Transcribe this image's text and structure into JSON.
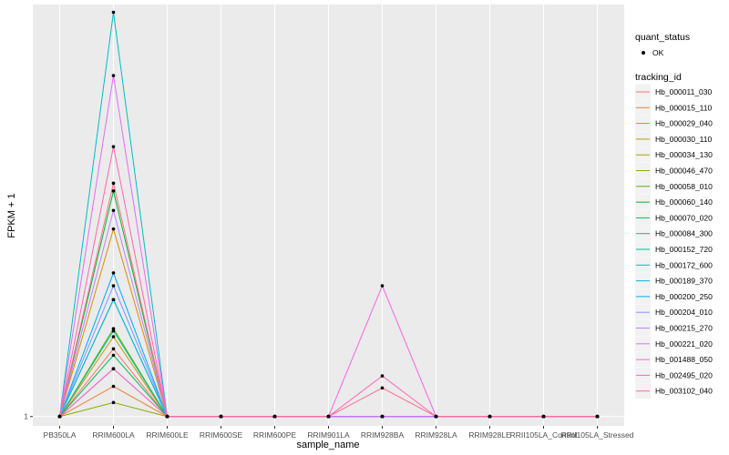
{
  "chart_data": {
    "type": "line",
    "xlabel": "sample_name",
    "ylabel": "FPKM + 1",
    "y_tick_labels": [
      "1"
    ],
    "categories": [
      "PB350LA",
      "RRIM600LA",
      "RRIM600LE",
      "RRIM600SE",
      "RRIM600PE",
      "RRIM901LA",
      "RRIM928BA",
      "RRIM928LA",
      "RRIM928LE",
      "RRII105LA_Control",
      "RRII105LA_Stressed"
    ],
    "ylim": [
      0.95,
      9.6
    ],
    "scale": "log",
    "grid": true,
    "legend_placement": "right",
    "point_legend": {
      "title": "quant_status",
      "entries": [
        "OK"
      ]
    },
    "series_legend_title": "tracking_id",
    "series": [
      {
        "name": "Hb_000011_030",
        "color": "#F8766D",
        "values": [
          1,
          1.45,
          1,
          1,
          1,
          1,
          1,
          1,
          1,
          1,
          1
        ]
      },
      {
        "name": "Hb_000015_110",
        "color": "#EB8335",
        "values": [
          1,
          1.18,
          1,
          1,
          1,
          1,
          1,
          1,
          1,
          1,
          1
        ]
      },
      {
        "name": "Hb_000029_040",
        "color": "#DA8F00",
        "values": [
          1,
          2.8,
          1,
          1,
          1,
          1,
          1,
          1,
          1,
          1,
          1
        ]
      },
      {
        "name": "Hb_000030_110",
        "color": "#C49A00",
        "values": [
          1,
          1.55,
          1,
          1,
          1,
          1,
          1,
          1,
          1,
          1,
          1
        ]
      },
      {
        "name": "Hb_000034_130",
        "color": "#A9A400",
        "values": [
          1,
          1.3,
          1,
          1,
          1,
          1,
          1,
          1,
          1,
          1,
          1
        ]
      },
      {
        "name": "Hb_000046_470",
        "color": "#86AC00",
        "values": [
          1,
          1.08,
          1,
          1,
          1,
          1,
          1,
          1,
          1,
          1,
          1
        ]
      },
      {
        "name": "Hb_000058_010",
        "color": "#53B400",
        "values": [
          1,
          1.62,
          1,
          1,
          1,
          1,
          1,
          1,
          1,
          1,
          1
        ]
      },
      {
        "name": "Hb_000060_140",
        "color": "#00B72E",
        "values": [
          1,
          3.45,
          1,
          1,
          1,
          1,
          1,
          1,
          1,
          1,
          1
        ]
      },
      {
        "name": "Hb_000070_020",
        "color": "#00BC59",
        "values": [
          1,
          1.4,
          1,
          1,
          1,
          1,
          1,
          1,
          1,
          1,
          1
        ]
      },
      {
        "name": "Hb_000084_300",
        "color": "#00BF7D",
        "values": [
          1,
          1.9,
          1,
          1,
          1,
          1,
          1,
          1,
          1,
          1,
          1
        ]
      },
      {
        "name": "Hb_000152_720",
        "color": "#00C0A2",
        "values": [
          1,
          1.6,
          1,
          1,
          1,
          1,
          1,
          1,
          1,
          1,
          1
        ]
      },
      {
        "name": "Hb_000172_600",
        "color": "#00BDC4",
        "values": [
          1,
          9.2,
          1,
          1,
          1,
          1,
          1,
          1,
          1,
          1,
          1
        ]
      },
      {
        "name": "Hb_000189_370",
        "color": "#00B5E2",
        "values": [
          1,
          1.9,
          1,
          1,
          1,
          1,
          1,
          1,
          1,
          1,
          1
        ]
      },
      {
        "name": "Hb_000200_250",
        "color": "#00A8FF",
        "values": [
          1,
          2.2,
          1,
          1,
          1,
          1,
          1,
          1,
          1,
          1,
          1
        ]
      },
      {
        "name": "Hb_000204_010",
        "color": "#7F96FF",
        "values": [
          1,
          2.05,
          1,
          1,
          1,
          1,
          1,
          1,
          1,
          1,
          1
        ]
      },
      {
        "name": "Hb_000215_270",
        "color": "#B983FF",
        "values": [
          1,
          3.1,
          1,
          1,
          1,
          1,
          1,
          1,
          1,
          1,
          1
        ]
      },
      {
        "name": "Hb_000221_020",
        "color": "#E16CF6",
        "values": [
          1,
          6.5,
          1,
          1,
          1,
          1,
          1,
          1,
          1,
          1,
          1
        ]
      },
      {
        "name": "Hb_001488_050",
        "color": "#F564E3",
        "values": [
          1,
          1.3,
          1,
          1,
          1,
          1,
          2.05,
          1,
          1,
          1,
          1
        ]
      },
      {
        "name": "Hb_002495_020",
        "color": "#FF64B0",
        "values": [
          1,
          4.4,
          1,
          1,
          1,
          1,
          1.25,
          1,
          1,
          1,
          1
        ]
      },
      {
        "name": "Hb_003102_040",
        "color": "#FF6C91",
        "values": [
          1,
          3.6,
          1,
          1,
          1,
          1,
          1.17,
          1,
          1,
          1,
          1
        ]
      }
    ]
  }
}
